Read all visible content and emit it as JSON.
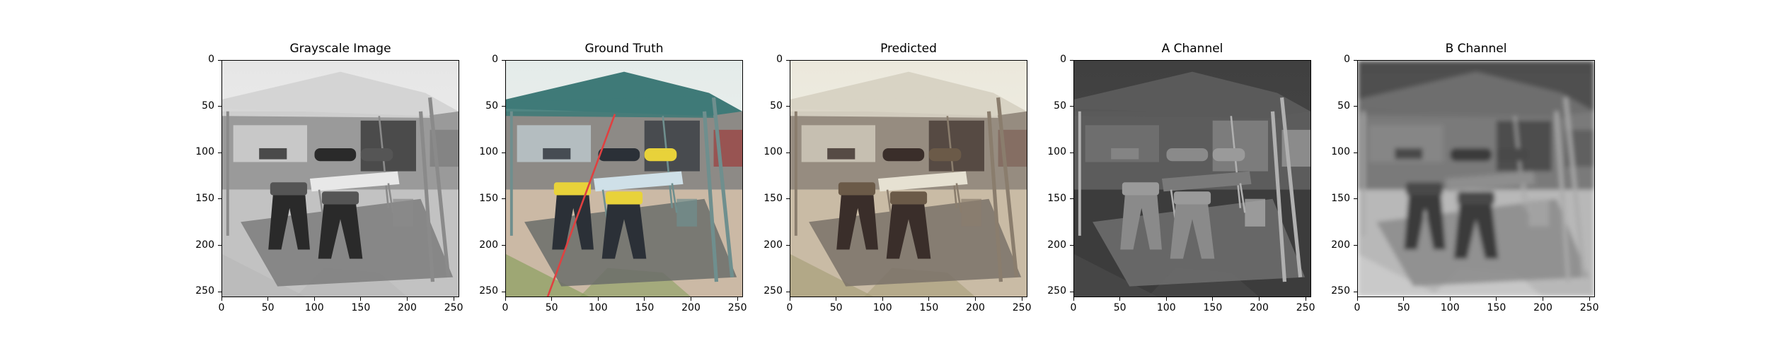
{
  "panels": [
    {
      "id": "grayscale",
      "title": "Grayscale Image",
      "mode": "gray",
      "description": "grayscale photo of a canopy tent with sawhorses and folding table"
    },
    {
      "id": "ground-truth",
      "title": "Ground Truth",
      "mode": "color",
      "description": "color photo of a teal canopy tent with yellow items and red line"
    },
    {
      "id": "predicted",
      "title": "Predicted",
      "mode": "sepia",
      "description": "desaturated sepia-toned colorized prediction of the canopy scene"
    },
    {
      "id": "a-channel",
      "title": "A Channel",
      "mode": "a",
      "description": "dark grayscale A channel map of the scene"
    },
    {
      "id": "b-channel",
      "title": "B Channel",
      "mode": "b",
      "description": "blurry grayscale B channel map of the scene"
    }
  ],
  "axes": {
    "y_ticks": [
      "0",
      "50",
      "100",
      "150",
      "200",
      "250"
    ],
    "x_ticks": [
      "0",
      "50",
      "100",
      "150",
      "200",
      "250"
    ],
    "y_values": [
      0,
      50,
      100,
      150,
      200,
      250
    ],
    "x_values": [
      0,
      50,
      100,
      150,
      200,
      250
    ],
    "range": [
      0,
      256
    ]
  }
}
